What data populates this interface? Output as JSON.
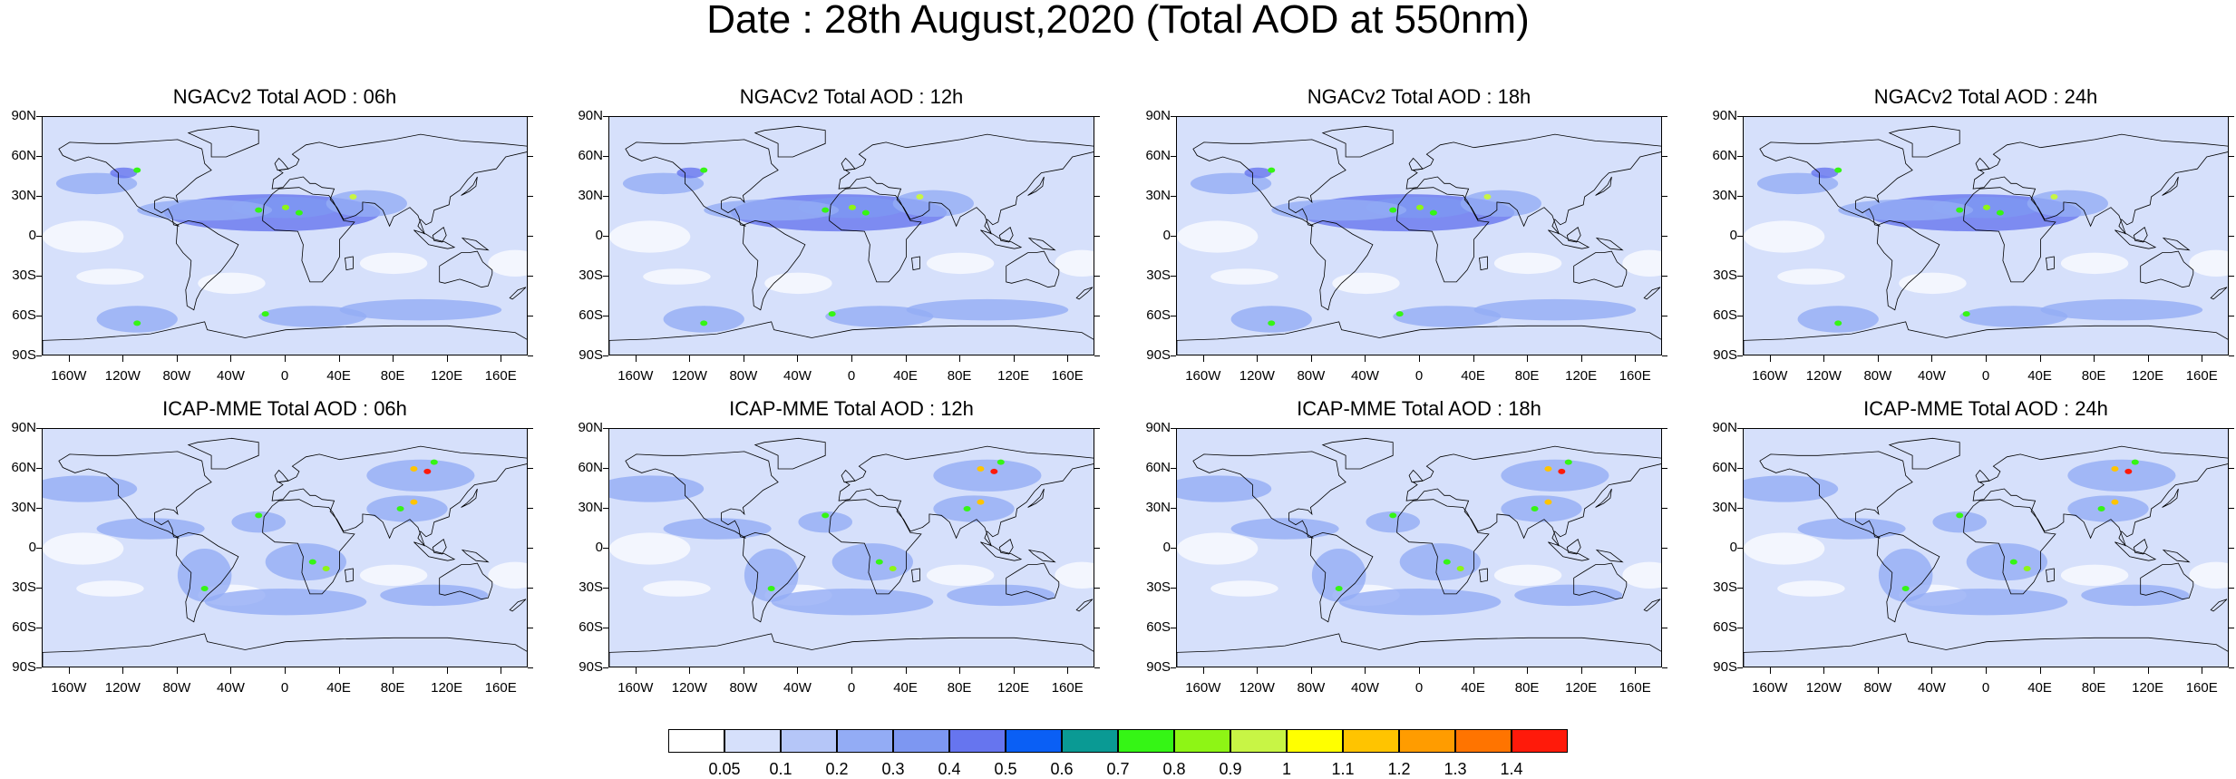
{
  "title": "Date : 28th August,2020 (Total AOD at 550nm)",
  "panels": [
    {
      "title": "NGACv2 Total AOD : 06h",
      "model": "NGACv2"
    },
    {
      "title": "NGACv2 Total AOD : 12h",
      "model": "NGACv2"
    },
    {
      "title": "NGACv2 Total AOD : 18h",
      "model": "NGACv2"
    },
    {
      "title": "NGACv2 Total AOD : 24h",
      "model": "NGACv2"
    },
    {
      "title": "ICAP-MME Total AOD : 06h",
      "model": "ICAP-MME"
    },
    {
      "title": "ICAP-MME Total AOD : 12h",
      "model": "ICAP-MME"
    },
    {
      "title": "ICAP-MME Total AOD : 18h",
      "model": "ICAP-MME"
    },
    {
      "title": "ICAP-MME Total AOD : 24h",
      "model": "ICAP-MME"
    }
  ],
  "lat_labels": [
    "90N",
    "60N",
    "30N",
    "0",
    "30S",
    "60S",
    "90S"
  ],
  "lon_labels": [
    "160W",
    "120W",
    "80W",
    "40W",
    "0",
    "40E",
    "80E",
    "120E",
    "160E"
  ],
  "colorbar": {
    "labels": [
      "0.05",
      "0.1",
      "0.2",
      "0.3",
      "0.4",
      "0.5",
      "0.6",
      "0.7",
      "0.8",
      "0.9",
      "1",
      "1.1",
      "1.2",
      "1.3",
      "1.4"
    ],
    "colors": [
      "#ffffff",
      "#d6e0fb",
      "#b5c6f8",
      "#93acf5",
      "#7d97f2",
      "#6675ef",
      "#0a5ff5",
      "#0a9a94",
      "#35f515",
      "#8ef515",
      "#c8f545",
      "#ffff00",
      "#ffc400",
      "#ff9c00",
      "#ff7400",
      "#ff1a0a"
    ]
  },
  "colors": {
    "background": "#ffffff",
    "low_aod": "#d6e0fb",
    "mid_aod": "#93acf5",
    "high_aod": "#6675ef",
    "coast": "#000000"
  }
}
